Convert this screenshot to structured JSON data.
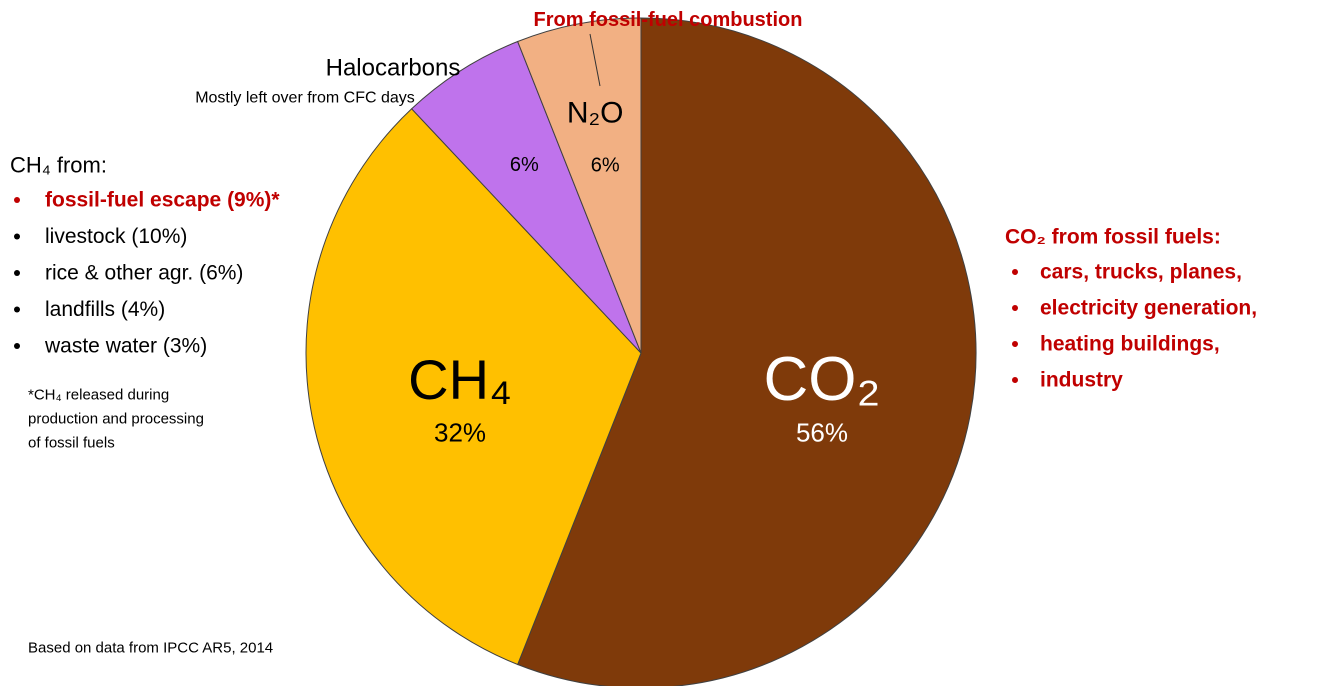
{
  "chart_data": {
    "type": "pie",
    "categories": [
      "CO₂",
      "CH₄",
      "Halocarbons",
      "N₂O"
    ],
    "values": [
      56,
      32,
      6,
      6
    ],
    "value_labels": [
      "56%",
      "32%",
      "6%",
      "6%"
    ],
    "colors": [
      "#7f3a0a",
      "#ffc000",
      "#bf73ec",
      "#f2b083"
    ],
    "annotations": {
      "n2o_note": "From fossil-fuel combustion",
      "halo_note": "Mostly left over from CFC days",
      "ch4_heading": "CH₄ from:",
      "ch4_items": [
        "fossil-fuel escape (9%)*",
        "livestock (10%)",
        "rice & other agr. (6%)",
        "landfills (4%)",
        "waste water (3%)"
      ],
      "ch4_footnote": [
        "*CH₄ released during",
        "production and processing",
        "of fossil fuels"
      ],
      "co2_heading": "CO₂ from fossil fuels:",
      "co2_items": [
        "cars, trucks, planes,",
        "electricity generation,",
        "heating buildings,",
        "industry"
      ],
      "source": "Based on data from IPCC AR5, 2014"
    }
  }
}
